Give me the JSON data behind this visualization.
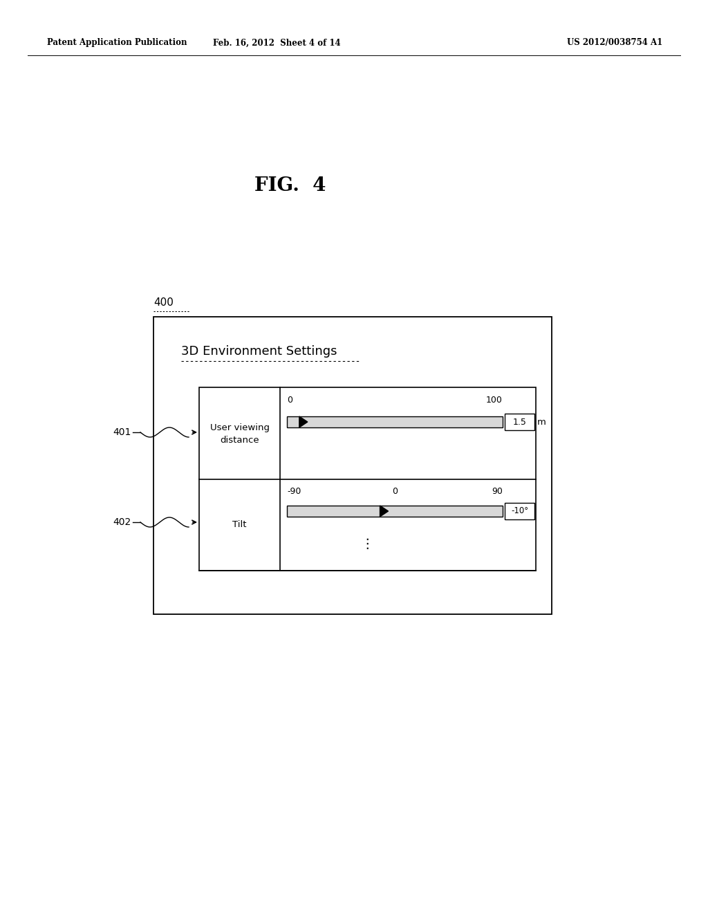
{
  "background_color": "#ffffff",
  "header_left": "Patent Application Publication",
  "header_center": "Feb. 16, 2012  Sheet 4 of 14",
  "header_right": "US 2012/0038754 A1",
  "fig_label": "FIG.  4",
  "label_400": "400",
  "label_401": "401",
  "label_402": "402",
  "dialog_title": "3D Environment Settings",
  "row1_label_line1": "User viewing",
  "row1_label_line2": "distance",
  "row1_range_left": "0",
  "row1_range_right": "100",
  "row1_value": "1.5",
  "row1_unit": "m",
  "row2_label": "Tilt",
  "row2_range_left": "-90",
  "row2_range_center": "0",
  "row2_range_right": "90",
  "row2_value": "-10°"
}
